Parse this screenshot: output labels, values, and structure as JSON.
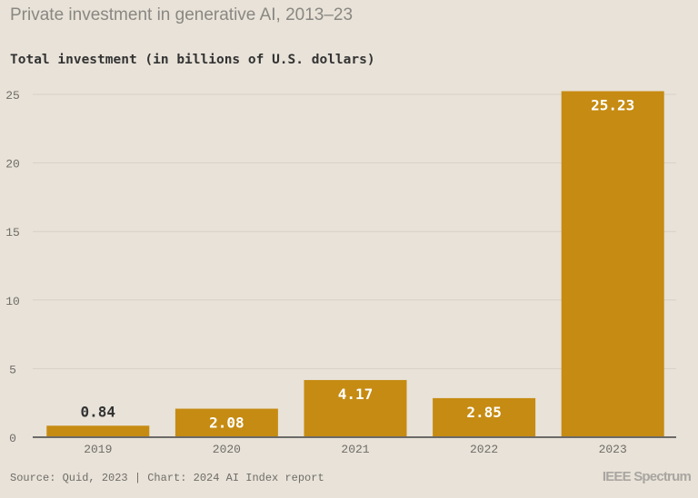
{
  "chart_data": {
    "type": "bar",
    "title": "Private investment in generative AI, 2013–23",
    "ylabel": "Total investment (in billions of U.S. dollars)",
    "xlabel": "",
    "categories": [
      "2019",
      "2020",
      "2021",
      "2022",
      "2023"
    ],
    "values": [
      0.84,
      2.08,
      4.17,
      2.85,
      25.23
    ],
    "data_labels": [
      "0.84",
      "2.08",
      "4.17",
      "2.85",
      "25.23"
    ],
    "ylim": [
      0,
      25
    ],
    "yticks": [
      0,
      5,
      10,
      15,
      20,
      25
    ],
    "grid": true,
    "bar_color": "#c68b12",
    "background": "#e8e2d8"
  },
  "footer": {
    "source": "Source: Quid, 2023 | Chart: 2024 AI Index report",
    "logo": "IEEE Spectrum"
  }
}
